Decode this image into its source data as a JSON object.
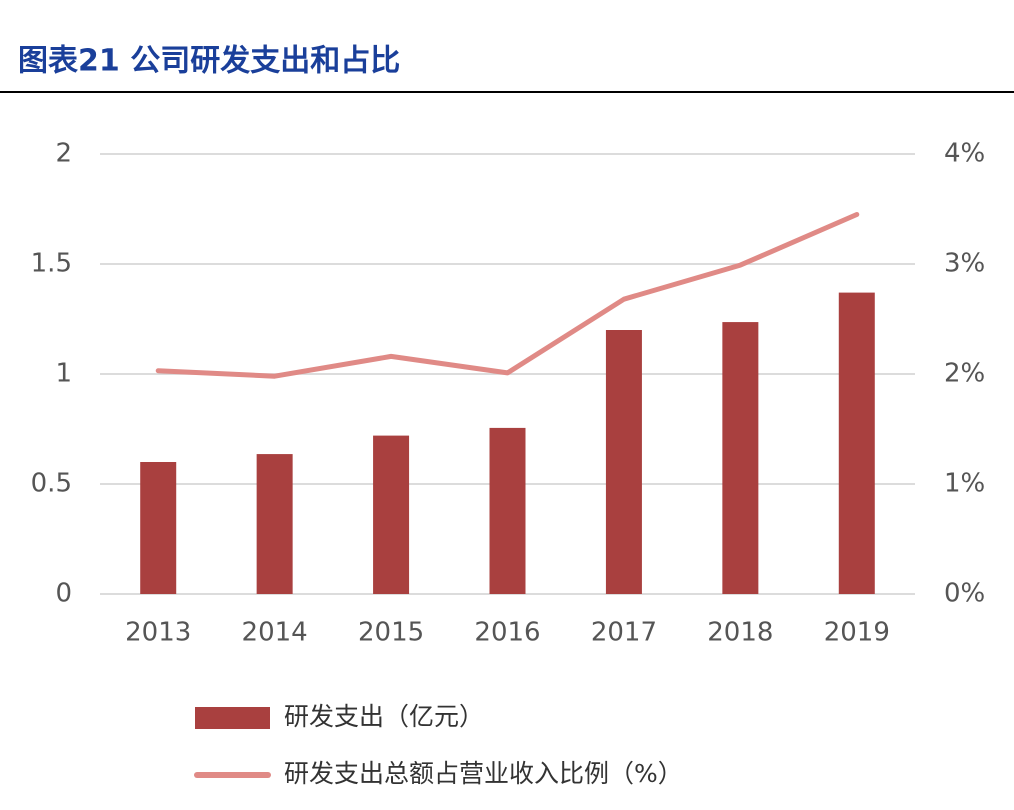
{
  "chart_data": {
    "type": "bar_line",
    "title": "图表21  公司研发支出和占比",
    "categories": [
      "2013",
      "2014",
      "2015",
      "2016",
      "2017",
      "2018",
      "2019"
    ],
    "series": [
      {
        "name": "研发支出（亿元）",
        "type": "bar",
        "color": "#a9403f",
        "values": [
          0.6,
          0.636,
          0.72,
          0.755,
          1.2,
          1.236,
          1.37
        ]
      },
      {
        "name": "研发支出总额占营业收入比例（%）",
        "type": "line",
        "axis": "y2",
        "color": "#e08a86",
        "values": [
          2.03,
          1.98,
          2.16,
          2.01,
          2.68,
          2.99,
          3.45
        ]
      }
    ],
    "ylim": [
      0,
      2
    ],
    "yticks": [
      0,
      0.5,
      1,
      1.5,
      2
    ],
    "y2lim": [
      0,
      4
    ],
    "y2ticks": [
      {
        "value": 0,
        "label": "0%"
      },
      {
        "value": 1,
        "label": "1%"
      },
      {
        "value": 2,
        "label": "2%"
      },
      {
        "value": 3,
        "label": "3%"
      },
      {
        "value": 4,
        "label": "4%"
      }
    ],
    "grid": true,
    "legend": "bottom"
  }
}
